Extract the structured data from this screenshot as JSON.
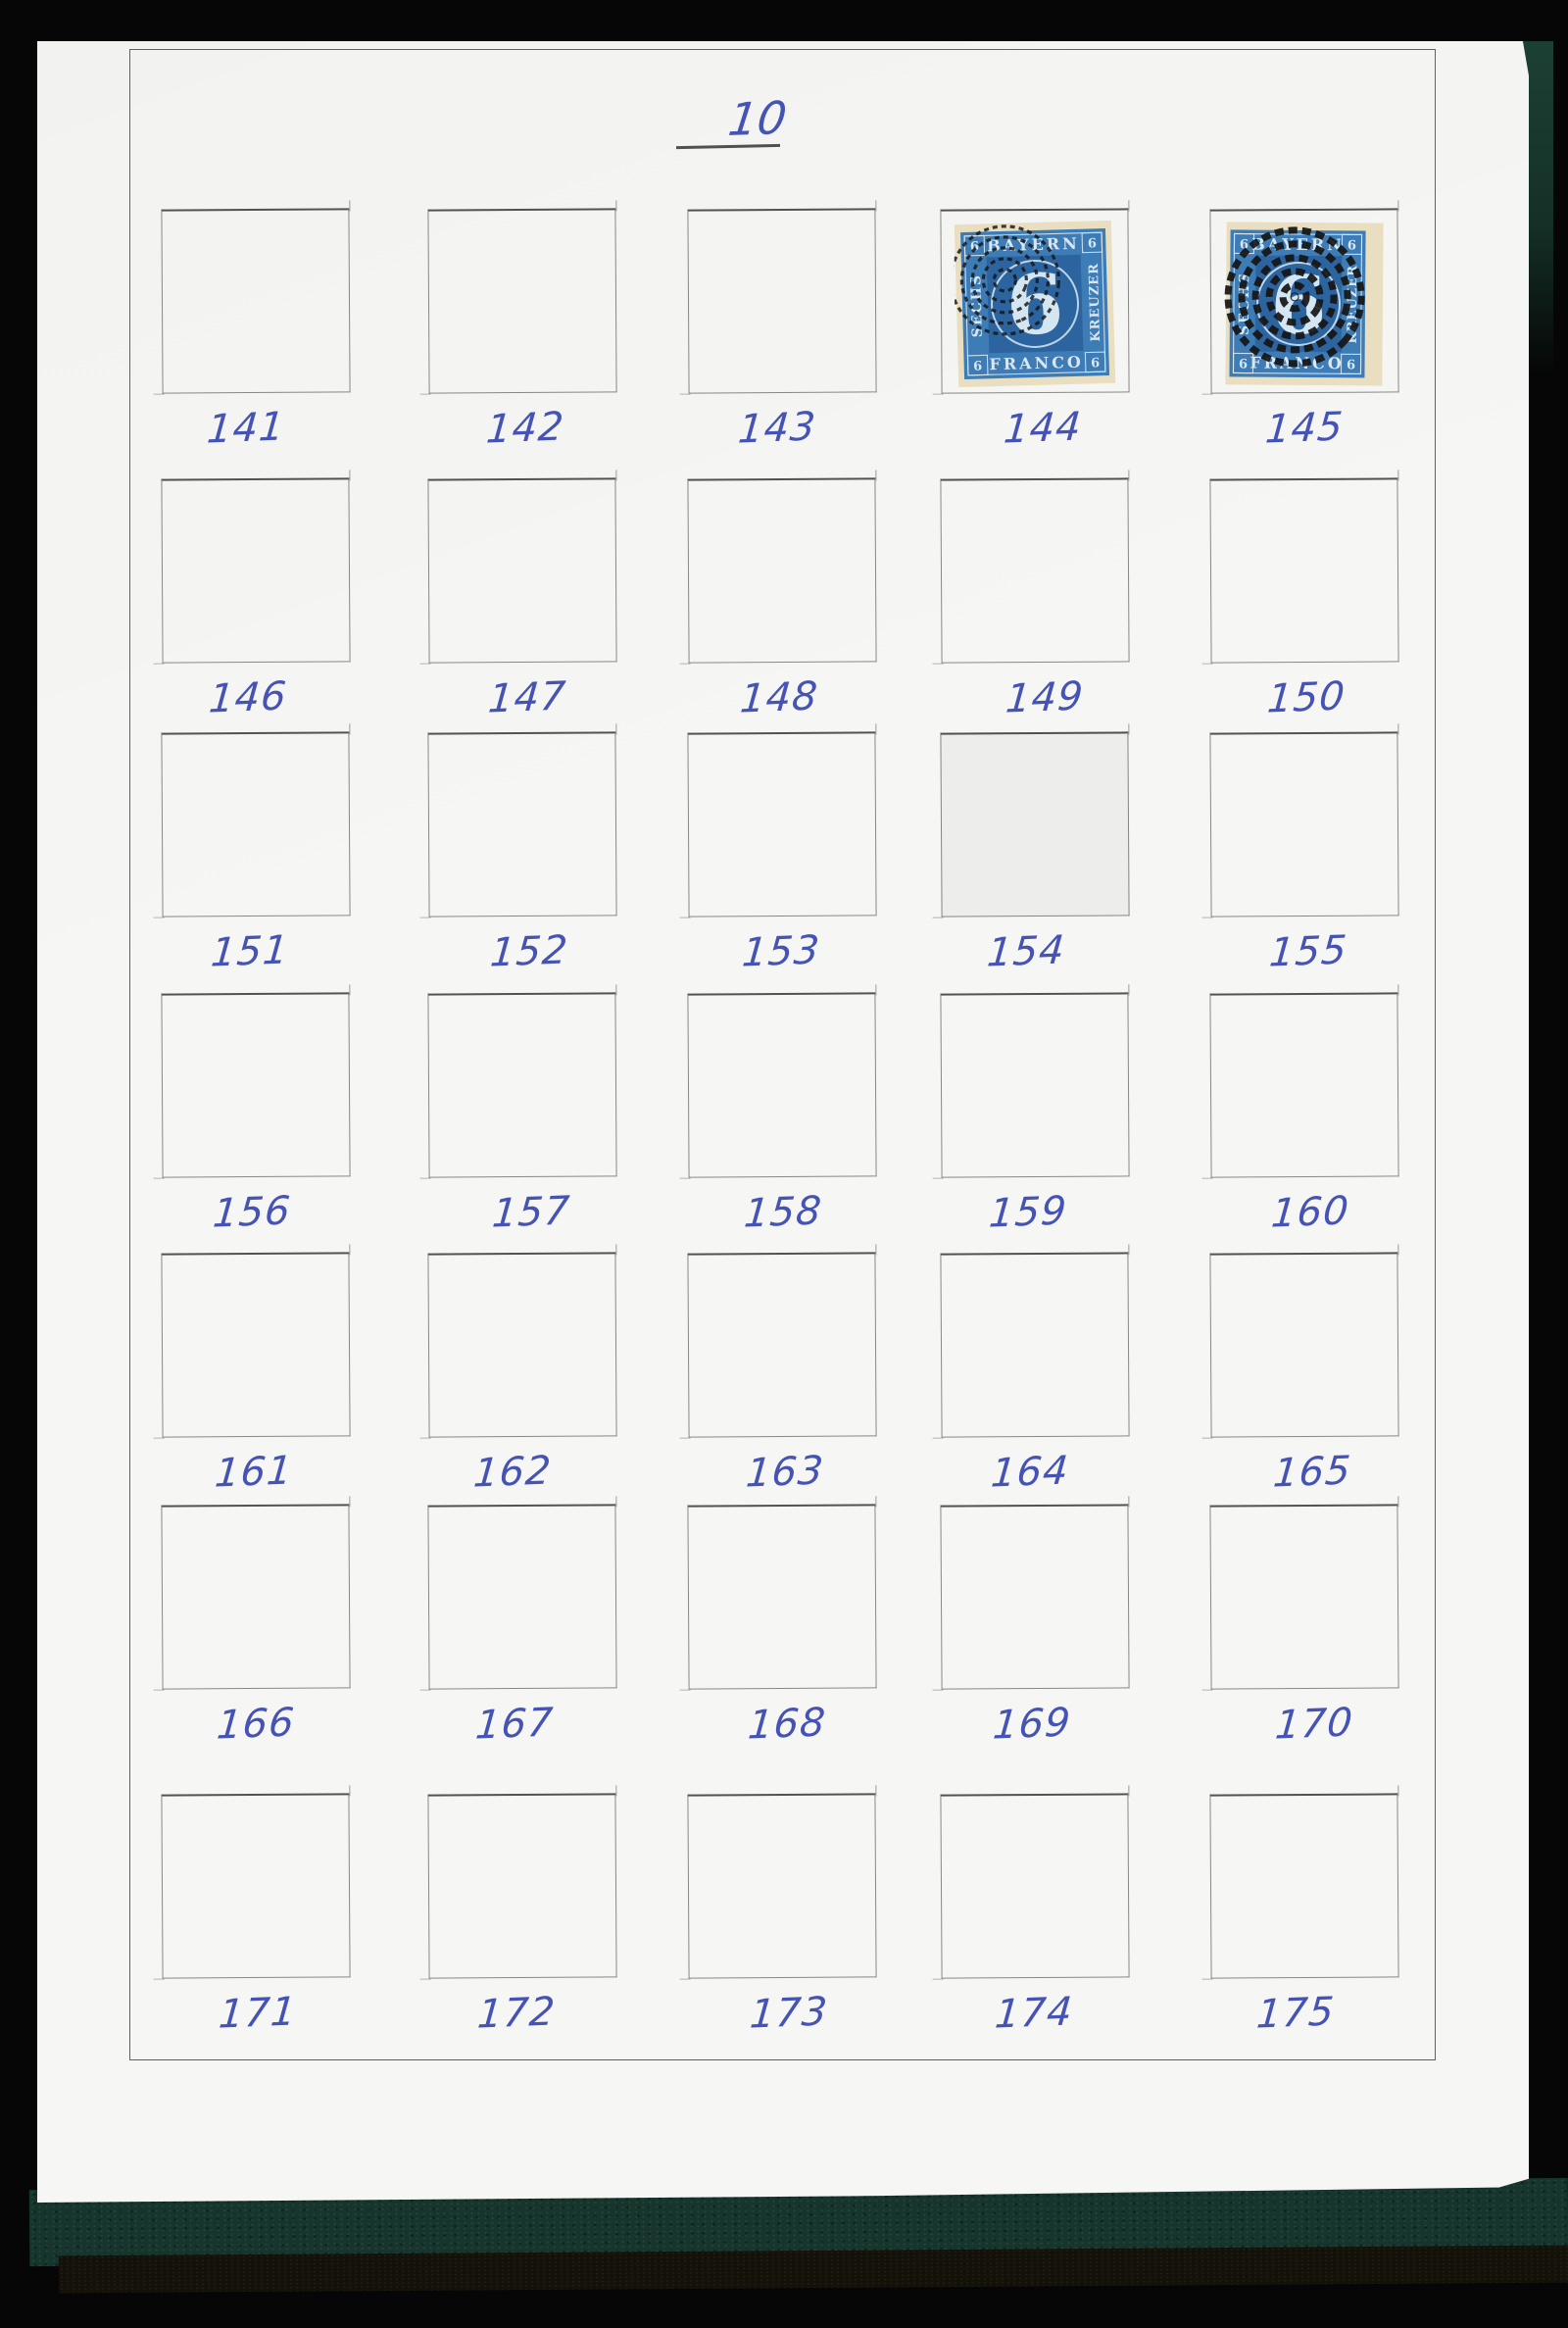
{
  "page": {
    "number": "10"
  },
  "colors": {
    "ink": "#4553b5",
    "pencil": "#4a4a4a",
    "paper": "#f6f6f4",
    "cover_black": "#060606",
    "cover_teal": "#16352c",
    "stamp_blue": "#3e7cb6",
    "stamp_dark_blue": "#2c64a0",
    "stamp_paper": "#e9dfc0",
    "stamp_pale": "#d7e7f3",
    "cancel": "#151515"
  },
  "stamp": {
    "top_text": "BAYERN",
    "bottom_text": "FRANCO",
    "left_text": "SECHS",
    "right_text": "KREUZER",
    "corner_value": "6",
    "center_value": "6"
  },
  "cells": [
    {
      "label": "141"
    },
    {
      "label": "142"
    },
    {
      "label": "143"
    },
    {
      "label": "144",
      "stamp": "light"
    },
    {
      "label": "145",
      "stamp": "heavy"
    },
    {
      "label": "146"
    },
    {
      "label": "147"
    },
    {
      "label": "148"
    },
    {
      "label": "149"
    },
    {
      "label": "150"
    },
    {
      "label": "151"
    },
    {
      "label": "152"
    },
    {
      "label": "153"
    },
    {
      "label": "154",
      "tint": true
    },
    {
      "label": "155"
    },
    {
      "label": "156"
    },
    {
      "label": "157"
    },
    {
      "label": "158"
    },
    {
      "label": "159"
    },
    {
      "label": "160"
    },
    {
      "label": "161"
    },
    {
      "label": "162"
    },
    {
      "label": "163"
    },
    {
      "label": "164"
    },
    {
      "label": "165"
    },
    {
      "label": "166"
    },
    {
      "label": "167"
    },
    {
      "label": "168"
    },
    {
      "label": "169"
    },
    {
      "label": "170"
    },
    {
      "label": "171"
    },
    {
      "label": "172"
    },
    {
      "label": "173"
    },
    {
      "label": "174"
    },
    {
      "label": "175"
    }
  ]
}
